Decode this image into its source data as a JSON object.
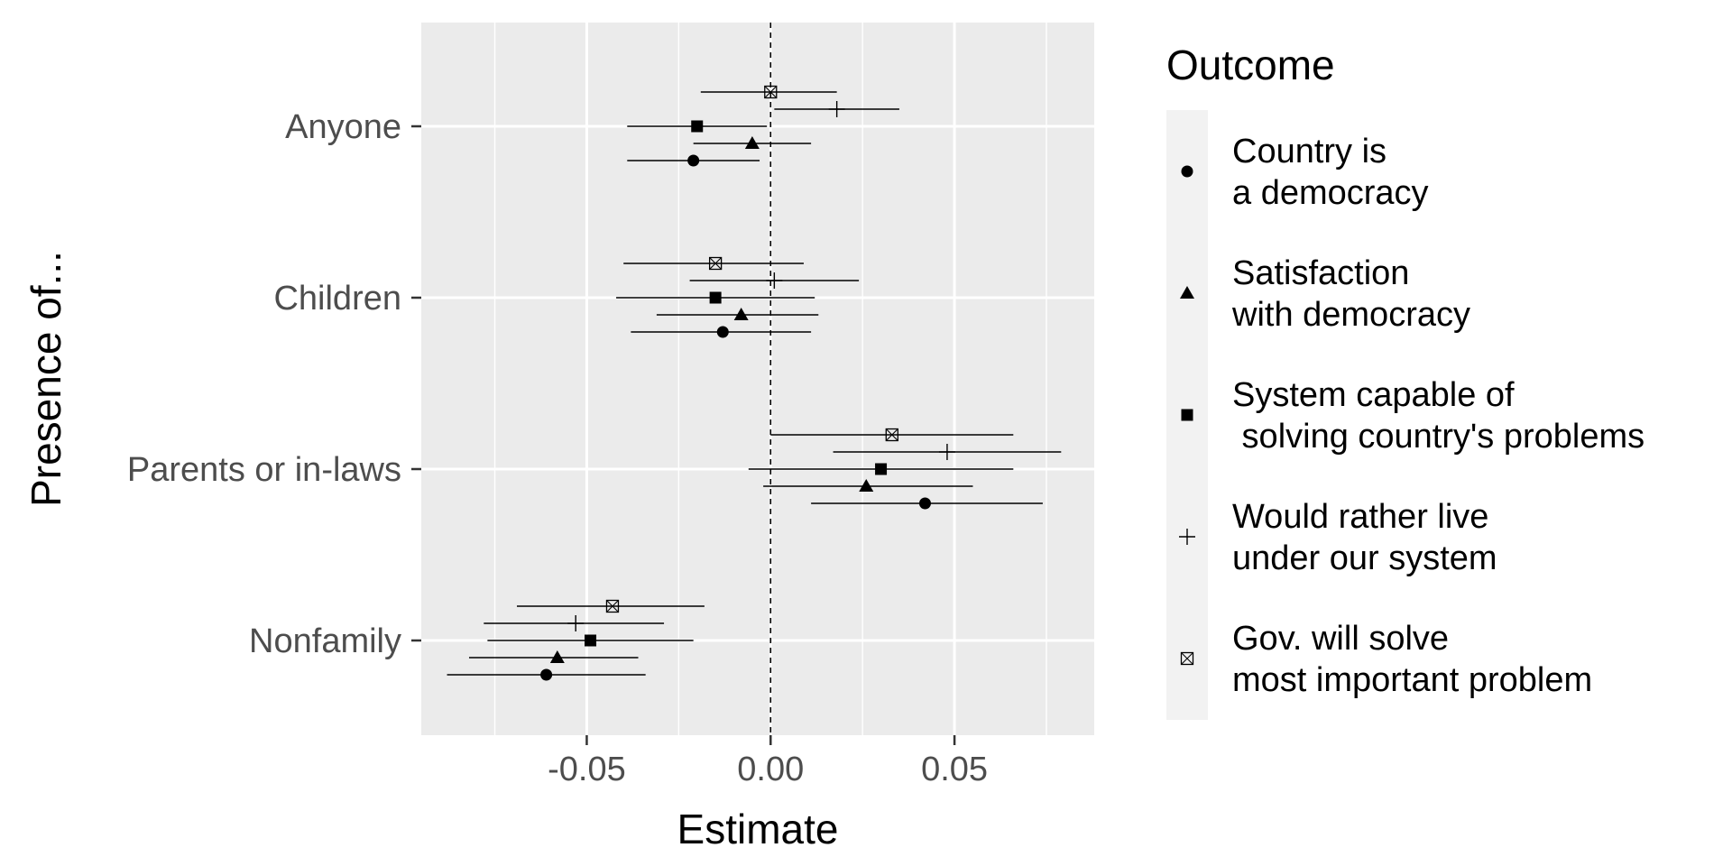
{
  "chart_data": {
    "type": "scatter",
    "subtype": "coefficient-plot",
    "xlabel": "Estimate",
    "ylabel": "Presence of...",
    "xlim": [
      -0.095,
      0.088
    ],
    "xticks": [
      -0.05,
      0.0,
      0.05
    ],
    "xtick_labels": [
      "-0.05",
      "0.00",
      "0.05"
    ],
    "reference_line": {
      "x": 0,
      "style": "dashed"
    },
    "categories": [
      "Anyone",
      "Children",
      "Parents or in-laws",
      "Nonfamily"
    ],
    "grid": true,
    "legend": {
      "title": "Outcome",
      "placement": "right"
    },
    "series": [
      {
        "name": "Country is a democracy",
        "label_lines": [
          "Country is",
          "a democracy"
        ],
        "shape": "circle",
        "points": [
          {
            "category": "Anyone",
            "estimate": -0.021,
            "low": -0.039,
            "high": -0.003
          },
          {
            "category": "Children",
            "estimate": -0.013,
            "low": -0.038,
            "high": 0.011
          },
          {
            "category": "Parents or in-laws",
            "estimate": 0.042,
            "low": 0.011,
            "high": 0.074
          },
          {
            "category": "Nonfamily",
            "estimate": -0.061,
            "low": -0.088,
            "high": -0.034
          }
        ]
      },
      {
        "name": "Satisfaction with democracy",
        "label_lines": [
          "Satisfaction",
          "with democracy"
        ],
        "shape": "triangle",
        "points": [
          {
            "category": "Anyone",
            "estimate": -0.005,
            "low": -0.021,
            "high": 0.011
          },
          {
            "category": "Children",
            "estimate": -0.008,
            "low": -0.031,
            "high": 0.013
          },
          {
            "category": "Parents or in-laws",
            "estimate": 0.026,
            "low": -0.002,
            "high": 0.055
          },
          {
            "category": "Nonfamily",
            "estimate": -0.058,
            "low": -0.082,
            "high": -0.036
          }
        ]
      },
      {
        "name": "System capable of solving country's problems",
        "label_lines": [
          "System capable of",
          " solving country's problems"
        ],
        "shape": "square",
        "points": [
          {
            "category": "Anyone",
            "estimate": -0.02,
            "low": -0.039,
            "high": -0.001
          },
          {
            "category": "Children",
            "estimate": -0.015,
            "low": -0.042,
            "high": 0.012
          },
          {
            "category": "Parents or in-laws",
            "estimate": 0.03,
            "low": -0.006,
            "high": 0.066
          },
          {
            "category": "Nonfamily",
            "estimate": -0.049,
            "low": -0.077,
            "high": -0.021
          }
        ]
      },
      {
        "name": "Would rather live under our system",
        "label_lines": [
          "Would rather live",
          "under our system"
        ],
        "shape": "plus",
        "points": [
          {
            "category": "Anyone",
            "estimate": 0.018,
            "low": 0.001,
            "high": 0.035
          },
          {
            "category": "Children",
            "estimate": 0.001,
            "low": -0.022,
            "high": 0.024
          },
          {
            "category": "Parents or in-laws",
            "estimate": 0.048,
            "low": 0.017,
            "high": 0.079
          },
          {
            "category": "Nonfamily",
            "estimate": -0.053,
            "low": -0.078,
            "high": -0.029
          }
        ]
      },
      {
        "name": "Gov. will solve most important problem",
        "label_lines": [
          "Gov. will solve",
          "most important problem"
        ],
        "shape": "square-cross",
        "points": [
          {
            "category": "Anyone",
            "estimate": 0.0,
            "low": -0.019,
            "high": 0.018
          },
          {
            "category": "Children",
            "estimate": -0.015,
            "low": -0.04,
            "high": 0.009
          },
          {
            "category": "Parents or in-laws",
            "estimate": 0.033,
            "low": 0.0,
            "high": 0.066
          },
          {
            "category": "Nonfamily",
            "estimate": -0.043,
            "low": -0.069,
            "high": -0.018
          }
        ]
      }
    ]
  }
}
